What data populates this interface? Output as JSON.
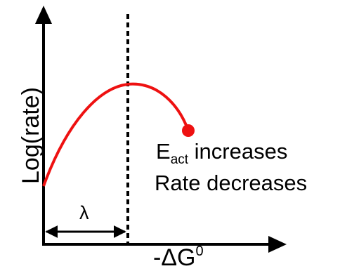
{
  "axes": {
    "y_label": "Log(rate)",
    "x_label": "-ΔG",
    "x_label_superscript": "0"
  },
  "span_label": "λ",
  "annotation": {
    "line1_main": "E",
    "line1_sub": "act",
    "line1_rest": " increases",
    "line2": "Rate decreases"
  },
  "colors": {
    "curve": "#ee1111",
    "axes": "#000000",
    "dashed_line": "#000000"
  }
}
